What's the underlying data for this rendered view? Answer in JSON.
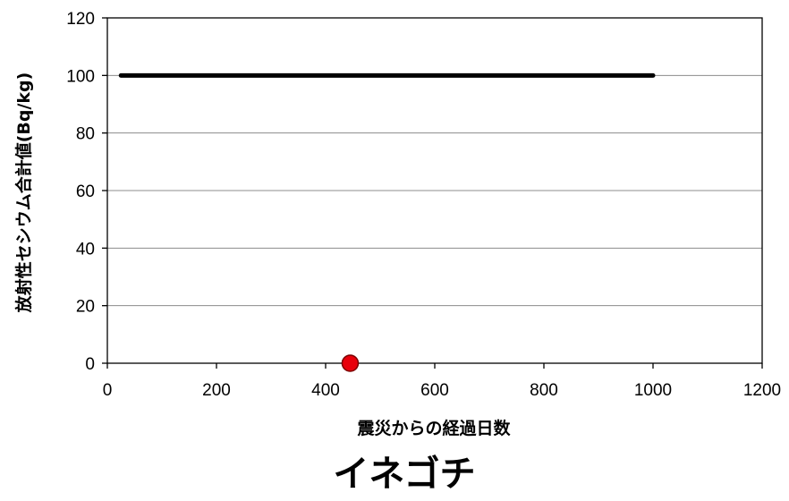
{
  "chart_data": {
    "type": "scatter",
    "title": "イネゴチ",
    "xlabel": "震災からの経過日数",
    "ylabel": "放射性セシウム合計値(Bq/kg)",
    "xlim": [
      0,
      1200
    ],
    "ylim": [
      0,
      120
    ],
    "x_ticks": [
      0,
      200,
      400,
      600,
      800,
      1000,
      1200
    ],
    "y_ticks": [
      0,
      20,
      40,
      60,
      80,
      100,
      120
    ],
    "grid": "horizontal",
    "reference_line": {
      "y": 100,
      "x_start": 25,
      "x_end": 1000,
      "color": "#000000"
    },
    "series": [
      {
        "points": [
          {
            "x": 445,
            "y": 0
          }
        ],
        "color": "#e8000b",
        "edge_color": "#7a0000"
      }
    ]
  }
}
